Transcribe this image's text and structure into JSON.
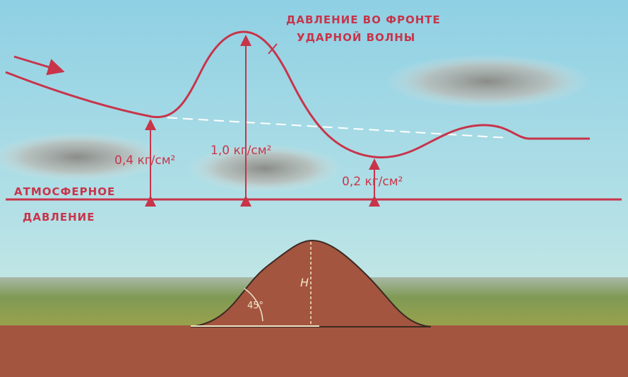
{
  "labels": {
    "wave_front": [
      "ДАВЛЕНИЕ ВО ФРОНТЕ",
      "УДАРНОЙ ВОЛНЫ"
    ],
    "pressure_low_left": "0,4 кг/см²",
    "pressure_peak": "1,0 кг/см²",
    "pressure_low_right": "0,2 кг/см²",
    "atmospheric": [
      "АТМОСФЕРНОЕ",
      "ДАВЛЕНИЕ"
    ],
    "height": "H",
    "angle": "45°"
  }
}
